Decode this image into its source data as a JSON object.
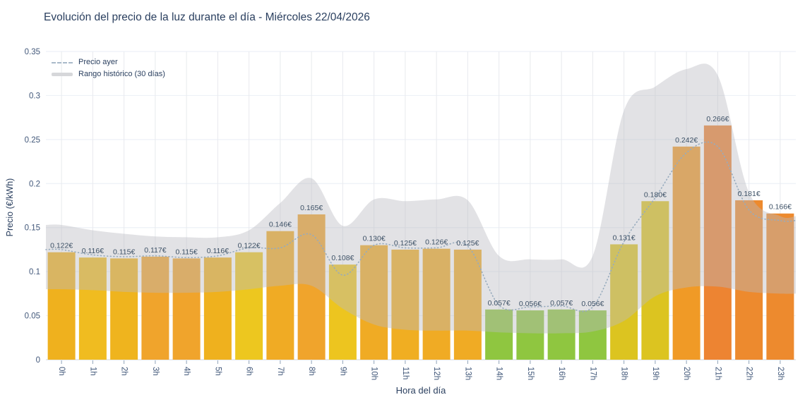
{
  "page": {
    "background": "#ffffff"
  },
  "header": {
    "title": "Evolución del precio de la luz durante el día - Miércoles 22/04/2026"
  },
  "chart_data": {
    "type": "bar",
    "title": "Evolución del precio de la luz durante el día - Miércoles 22/04/2026",
    "xlabel": "Hora del día",
    "ylabel": "Precio (€/kWh)",
    "categories": [
      "0h",
      "1h",
      "2h",
      "3h",
      "4h",
      "5h",
      "6h",
      "7h",
      "8h",
      "9h",
      "10h",
      "11h",
      "12h",
      "13h",
      "14h",
      "15h",
      "16h",
      "17h",
      "18h",
      "19h",
      "20h",
      "21h",
      "22h",
      "23h"
    ],
    "ylim": [
      0,
      0.35
    ],
    "ytick_values": [
      0,
      0.05,
      0.1,
      0.15,
      0.2,
      0.25,
      0.3,
      0.35
    ],
    "ytick_labels": [
      "0",
      "0.05",
      "0.1",
      "0.15",
      "0.2",
      "0.25",
      "0.3",
      "0.35"
    ],
    "grid": true,
    "legend_position": "top-left",
    "text_color": "#2a3f5f",
    "tick_color": "#42587a",
    "value_label_color": "#3d5166",
    "grid_color_h": "#edf1f7",
    "grid_color_v": "#e8eaee",
    "zero_line_color": "#ccd3dc",
    "series": [
      {
        "type": "bar",
        "values": [
          0.122,
          0.116,
          0.115,
          0.117,
          0.115,
          0.116,
          0.122,
          0.146,
          0.165,
          0.108,
          0.13,
          0.125,
          0.126,
          0.125,
          0.057,
          0.056,
          0.057,
          0.056,
          0.131,
          0.18,
          0.242,
          0.266,
          0.181,
          0.166
        ],
        "labels": [
          "0.122€",
          "0.116€",
          "0.115€",
          "0.117€",
          "0.115€",
          "0.116€",
          "0.122€",
          "0.146€",
          "0.165€",
          "0.108€",
          "0.130€",
          "0.125€",
          "0.126€",
          "0.125€",
          "0.057€",
          "0.056€",
          "0.057€",
          "0.056€",
          "0.131€",
          "0.180€",
          "0.242€",
          "0.266€",
          "0.181€",
          "0.166€"
        ],
        "colors": [
          "#efb11e",
          "#f0bc20",
          "#efb41e",
          "#f0a42c",
          "#f0a42c",
          "#efb11e",
          "#edc71f",
          "#f0ab24",
          "#f0a42c",
          "#edc51f",
          "#f0ab24",
          "#f0ae22",
          "#f0ab24",
          "#f0ab24",
          "#8fc640",
          "#8fc640",
          "#8fc640",
          "#8fc640",
          "#dcc420",
          "#dcc420",
          "#f09a26",
          "#ed8432",
          "#ed8a2e",
          "#ed8a2e"
        ]
      },
      {
        "name": "Precio ayer",
        "type": "line",
        "line_style": "dotted",
        "color": "#97abbd",
        "values": [
          0.125,
          0.119,
          0.117,
          0.118,
          0.116,
          0.118,
          0.127,
          0.127,
          0.142,
          0.096,
          0.13,
          0.127,
          0.127,
          0.129,
          0.062,
          0.06,
          0.061,
          0.06,
          0.134,
          0.184,
          0.235,
          0.242,
          0.17,
          0.158
        ]
      },
      {
        "name": "Rango histórico (30 días)",
        "type": "band",
        "color": "#b9bac0",
        "opacity": 0.42,
        "upper": [
          0.153,
          0.147,
          0.143,
          0.14,
          0.139,
          0.139,
          0.147,
          0.178,
          0.206,
          0.152,
          0.182,
          0.18,
          0.182,
          0.181,
          0.118,
          0.114,
          0.114,
          0.118,
          0.283,
          0.31,
          0.33,
          0.323,
          0.19,
          0.163
        ],
        "lower": [
          0.08,
          0.079,
          0.077,
          0.076,
          0.076,
          0.077,
          0.08,
          0.084,
          0.084,
          0.058,
          0.04,
          0.034,
          0.033,
          0.033,
          0.031,
          0.03,
          0.03,
          0.032,
          0.044,
          0.072,
          0.082,
          0.083,
          0.077,
          0.075
        ]
      }
    ]
  },
  "legend": {
    "items": [
      {
        "label": "Precio ayer",
        "swatch": "dashed-line"
      },
      {
        "label": "Rango histórico (30 días)",
        "swatch": "gray-band"
      }
    ]
  }
}
